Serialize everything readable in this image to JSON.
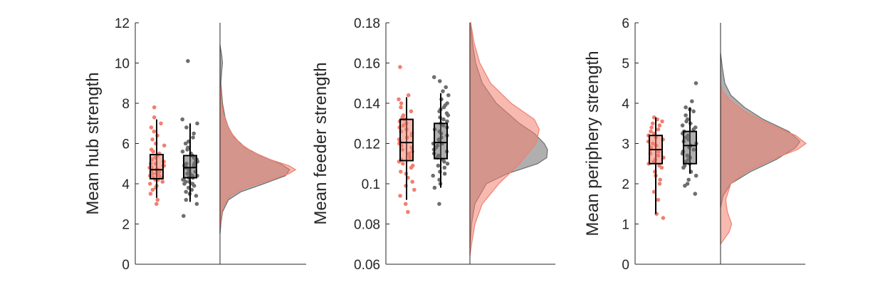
{
  "chart_data": [
    {
      "type": "raincloud",
      "ylabel": "Mean hub strength",
      "ylim": [
        0,
        12
      ],
      "yticks": [
        "0",
        "2",
        "4",
        "6",
        "8",
        "10",
        "12"
      ],
      "colors": {
        "group_a": "#f08070",
        "group_b": "#6e6e6e"
      },
      "boxes": [
        {
          "color": "#f08070",
          "min": 3.3,
          "q1": 4.25,
          "median": 4.7,
          "q3": 5.45,
          "max": 7.2
        },
        {
          "color": "#6e6e6e",
          "min": 3.1,
          "q1": 4.3,
          "median": 4.8,
          "q3": 5.4,
          "max": 7.0
        }
      ],
      "points_a": [
        3.0,
        3.2,
        3.5,
        3.7,
        3.8,
        3.9,
        4.0,
        4.1,
        4.2,
        4.2,
        4.3,
        4.3,
        4.4,
        4.4,
        4.5,
        4.5,
        4.6,
        4.6,
        4.7,
        4.7,
        4.8,
        4.8,
        4.9,
        4.9,
        5.0,
        5.0,
        5.1,
        5.2,
        5.3,
        5.4,
        5.5,
        5.6,
        5.7,
        5.9,
        6.0,
        6.2,
        6.4,
        6.6,
        6.8,
        7.0,
        7.3,
        7.8
      ],
      "points_b": [
        2.4,
        3.0,
        3.2,
        3.4,
        3.5,
        3.6,
        3.7,
        3.8,
        3.9,
        4.0,
        4.0,
        4.1,
        4.1,
        4.2,
        4.2,
        4.3,
        4.3,
        4.4,
        4.4,
        4.5,
        4.5,
        4.5,
        4.6,
        4.6,
        4.7,
        4.7,
        4.8,
        4.8,
        4.9,
        4.9,
        5.0,
        5.0,
        5.1,
        5.1,
        5.2,
        5.2,
        5.3,
        5.4,
        5.5,
        5.6,
        5.7,
        5.8,
        6.0,
        6.1,
        6.3,
        6.5,
        6.8,
        7.0,
        7.2,
        10.1
      ],
      "density_a": [
        [
          1.8,
          0
        ],
        [
          2.2,
          0.01
        ],
        [
          2.8,
          0.03
        ],
        [
          3.4,
          0.12
        ],
        [
          3.8,
          0.3
        ],
        [
          4.2,
          0.6
        ],
        [
          4.5,
          0.82
        ],
        [
          4.7,
          0.9
        ],
        [
          4.9,
          0.82
        ],
        [
          5.2,
          0.6
        ],
        [
          5.6,
          0.38
        ],
        [
          6.0,
          0.24
        ],
        [
          6.5,
          0.14
        ],
        [
          7.0,
          0.08
        ],
        [
          7.5,
          0.04
        ],
        [
          8.0,
          0.02
        ],
        [
          8.5,
          0.01
        ],
        [
          8.9,
          0
        ]
      ],
      "density_b": [
        [
          1.5,
          0
        ],
        [
          2.0,
          0.01
        ],
        [
          2.6,
          0.03
        ],
        [
          3.2,
          0.1
        ],
        [
          3.6,
          0.25
        ],
        [
          4.0,
          0.52
        ],
        [
          4.4,
          0.78
        ],
        [
          4.7,
          0.83
        ],
        [
          5.0,
          0.72
        ],
        [
          5.4,
          0.48
        ],
        [
          5.8,
          0.3
        ],
        [
          6.3,
          0.17
        ],
        [
          6.8,
          0.1
        ],
        [
          7.3,
          0.06
        ],
        [
          8.0,
          0.03
        ],
        [
          9.0,
          0.01
        ],
        [
          9.6,
          0.02
        ],
        [
          10.0,
          0.03
        ],
        [
          10.4,
          0.02
        ],
        [
          10.9,
          0
        ]
      ]
    },
    {
      "type": "raincloud",
      "ylabel": "Mean feeder strength",
      "ylim": [
        0.06,
        0.18
      ],
      "yticks": [
        "0.06",
        "0.08",
        "0.1",
        "0.12",
        "0.14",
        "0.16",
        "0.18"
      ],
      "colors": {
        "group_a": "#f08070",
        "group_b": "#6e6e6e"
      },
      "boxes": [
        {
          "color": "#f08070",
          "min": 0.092,
          "q1": 0.1115,
          "median": 0.1205,
          "q3": 0.132,
          "max": 0.143
        },
        {
          "color": "#6e6e6e",
          "min": 0.098,
          "q1": 0.1125,
          "median": 0.1205,
          "q3": 0.13,
          "max": 0.145
        }
      ],
      "points_a": [
        0.086,
        0.09,
        0.094,
        0.097,
        0.099,
        0.101,
        0.103,
        0.105,
        0.106,
        0.108,
        0.109,
        0.11,
        0.111,
        0.112,
        0.113,
        0.114,
        0.115,
        0.116,
        0.117,
        0.118,
        0.119,
        0.12,
        0.121,
        0.122,
        0.123,
        0.124,
        0.125,
        0.126,
        0.127,
        0.128,
        0.129,
        0.13,
        0.131,
        0.132,
        0.133,
        0.134,
        0.136,
        0.138,
        0.14,
        0.142,
        0.144,
        0.158
      ],
      "points_b": [
        0.09,
        0.098,
        0.1,
        0.102,
        0.104,
        0.105,
        0.106,
        0.108,
        0.109,
        0.11,
        0.111,
        0.112,
        0.113,
        0.114,
        0.115,
        0.116,
        0.117,
        0.117,
        0.118,
        0.119,
        0.12,
        0.12,
        0.121,
        0.122,
        0.123,
        0.124,
        0.125,
        0.126,
        0.127,
        0.128,
        0.129,
        0.13,
        0.131,
        0.132,
        0.133,
        0.134,
        0.135,
        0.136,
        0.137,
        0.138,
        0.139,
        0.14,
        0.142,
        0.144,
        0.146,
        0.148,
        0.151,
        0.153
      ],
      "density_a": [
        [
          0.064,
          0
        ],
        [
          0.07,
          0.02
        ],
        [
          0.08,
          0.06
        ],
        [
          0.09,
          0.15
        ],
        [
          0.1,
          0.35
        ],
        [
          0.11,
          0.6
        ],
        [
          0.12,
          0.8
        ],
        [
          0.127,
          0.84
        ],
        [
          0.132,
          0.78
        ],
        [
          0.14,
          0.5
        ],
        [
          0.15,
          0.25
        ],
        [
          0.16,
          0.12
        ],
        [
          0.17,
          0.05
        ],
        [
          0.18,
          0.01
        ]
      ],
      "density_b": [
        [
          0.068,
          0
        ],
        [
          0.08,
          0.02
        ],
        [
          0.09,
          0.06
        ],
        [
          0.1,
          0.2
        ],
        [
          0.105,
          0.45
        ],
        [
          0.11,
          0.82
        ],
        [
          0.113,
          0.93
        ],
        [
          0.117,
          0.94
        ],
        [
          0.12,
          0.9
        ],
        [
          0.125,
          0.78
        ],
        [
          0.13,
          0.6
        ],
        [
          0.14,
          0.32
        ],
        [
          0.15,
          0.15
        ],
        [
          0.16,
          0.07
        ],
        [
          0.17,
          0.03
        ],
        [
          0.18,
          0.01
        ]
      ]
    },
    {
      "type": "raincloud",
      "ylabel": "Mean periphery strength",
      "ylim": [
        0,
        6
      ],
      "yticks": [
        "0",
        "1",
        "2",
        "3",
        "4",
        "5",
        "6"
      ],
      "colors": {
        "group_a": "#f08070",
        "group_b": "#6e6e6e"
      },
      "boxes": [
        {
          "color": "#f08070",
          "min": 1.25,
          "q1": 2.5,
          "median": 2.85,
          "q3": 3.2,
          "max": 3.65
        },
        {
          "color": "#6e6e6e",
          "min": 2.25,
          "q1": 2.5,
          "median": 2.95,
          "q3": 3.3,
          "max": 3.9
        }
      ],
      "points_a": [
        1.15,
        1.25,
        1.6,
        1.8,
        2.0,
        2.1,
        2.2,
        2.3,
        2.4,
        2.45,
        2.5,
        2.55,
        2.6,
        2.65,
        2.7,
        2.75,
        2.8,
        2.85,
        2.9,
        2.95,
        3.0,
        3.05,
        3.1,
        3.15,
        3.2,
        3.25,
        3.3,
        3.35,
        3.4,
        3.45,
        3.5,
        3.55,
        3.6,
        3.65
      ],
      "points_b": [
        1.75,
        1.95,
        2.0,
        2.1,
        2.2,
        2.3,
        2.4,
        2.45,
        2.5,
        2.55,
        2.6,
        2.65,
        2.7,
        2.75,
        2.8,
        2.85,
        2.9,
        2.95,
        3.0,
        3.05,
        3.1,
        3.15,
        3.2,
        3.25,
        3.3,
        3.35,
        3.4,
        3.45,
        3.5,
        3.55,
        3.6,
        3.7,
        3.8,
        3.85,
        3.9,
        4.05,
        4.5
      ],
      "density_a": [
        [
          0.5,
          0
        ],
        [
          0.8,
          0.1
        ],
        [
          1.0,
          0.13
        ],
        [
          1.3,
          0.08
        ],
        [
          1.6,
          0.06
        ],
        [
          2.0,
          0.12
        ],
        [
          2.3,
          0.3
        ],
        [
          2.6,
          0.6
        ],
        [
          2.85,
          0.9
        ],
        [
          3.0,
          1.0
        ],
        [
          3.2,
          0.88
        ],
        [
          3.5,
          0.55
        ],
        [
          3.8,
          0.28
        ],
        [
          4.1,
          0.1
        ],
        [
          4.3,
          0.02
        ],
        [
          4.5,
          0
        ]
      ],
      "density_b": [
        [
          1.4,
          0
        ],
        [
          1.7,
          0.03
        ],
        [
          2.0,
          0.12
        ],
        [
          2.3,
          0.35
        ],
        [
          2.6,
          0.65
        ],
        [
          2.9,
          0.88
        ],
        [
          3.05,
          0.93
        ],
        [
          3.3,
          0.8
        ],
        [
          3.6,
          0.5
        ],
        [
          3.9,
          0.28
        ],
        [
          4.2,
          0.12
        ],
        [
          4.5,
          0.05
        ],
        [
          4.9,
          0.02
        ],
        [
          5.25,
          0
        ]
      ]
    }
  ]
}
